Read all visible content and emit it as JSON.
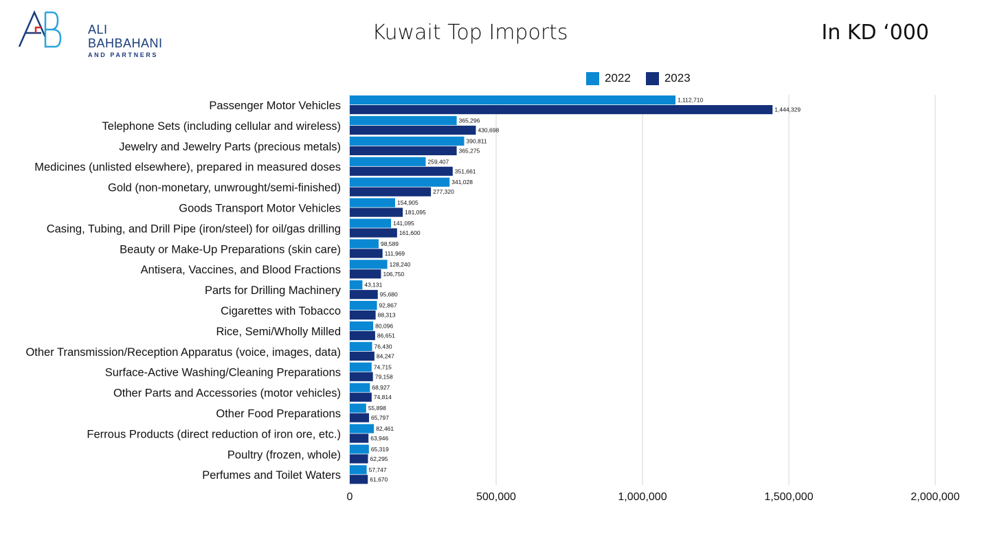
{
  "logo": {
    "line1": "ALI",
    "line2": "BAHBAHANI",
    "line3": "AND PARTNERS"
  },
  "units_label": "In KD ‘000",
  "colors": {
    "y2022": "#0a88d3",
    "y2023": "#14307a",
    "grid": "#d6d6d6",
    "logo_blue": "#1a3d7c",
    "logo_red": "#d92b2b"
  },
  "chart_data": {
    "type": "bar",
    "orientation": "horizontal",
    "title": "Kuwait Top Imports",
    "xlabel": "",
    "ylabel": "",
    "xlim": [
      0,
      2000000
    ],
    "xticks": [
      0,
      500000,
      1000000,
      1500000,
      2000000
    ],
    "xtick_labels": [
      "0",
      "500,000",
      "1,000,000",
      "1,500,000",
      "2,000,000"
    ],
    "grid": true,
    "legend_position": "top",
    "categories": [
      "Passenger Motor Vehicles",
      "Telephone Sets (including cellular and wireless)",
      "Jewelry and Jewelry Parts (precious metals)",
      "Medicines (unlisted elsewhere), prepared in measured doses",
      "Gold (non-monetary, unwrought/semi-finished)",
      "Goods Transport Motor Vehicles",
      "Casing, Tubing, and Drill Pipe (iron/steel) for oil/gas drilling",
      "Beauty or Make-Up Preparations (skin care)",
      "Antisera, Vaccines, and Blood Fractions",
      "Parts for Drilling Machinery",
      "Cigarettes with Tobacco",
      "Rice, Semi/Wholly Milled",
      "Other Transmission/Reception Apparatus (voice, images, data)",
      "Surface-Active Washing/Cleaning Preparations",
      "Other Parts and Accessories (motor vehicles)",
      "Other Food Preparations",
      "Ferrous Products (direct reduction of iron ore, etc.)",
      "Poultry (frozen, whole)",
      "Perfumes and Toilet Waters"
    ],
    "series": [
      {
        "name": "2022",
        "values": [
          1112710,
          365296,
          390811,
          259407,
          341028,
          154905,
          141095,
          98589,
          128240,
          43131,
          92867,
          80096,
          76430,
          74715,
          68927,
          55898,
          82461,
          65319,
          57747
        ],
        "labels": [
          "1,112,710",
          "365,296",
          "390,811",
          "259,407",
          "341,028",
          "154,905",
          "141,095",
          "98,589",
          "128,240",
          "43,131",
          "92,867",
          "80,096",
          "76,430",
          "74,715",
          "68,927",
          "55,898",
          "82,461",
          "65,319",
          "57,747"
        ]
      },
      {
        "name": "2023",
        "values": [
          1444329,
          430698,
          365275,
          351661,
          277320,
          181095,
          161600,
          111969,
          106750,
          95680,
          88313,
          86651,
          84247,
          79158,
          74814,
          65797,
          63946,
          62295,
          61670
        ],
        "labels": [
          "1,444,329",
          "430,698",
          "365,275",
          "351,661",
          "277,320",
          "181,095",
          "161,600",
          "111,969",
          "106,750",
          "95,680",
          "88,313",
          "86,651",
          "84,247",
          "79,158",
          "74,814",
          "65,797",
          "63,946",
          "62,295",
          "61,670"
        ]
      }
    ]
  }
}
